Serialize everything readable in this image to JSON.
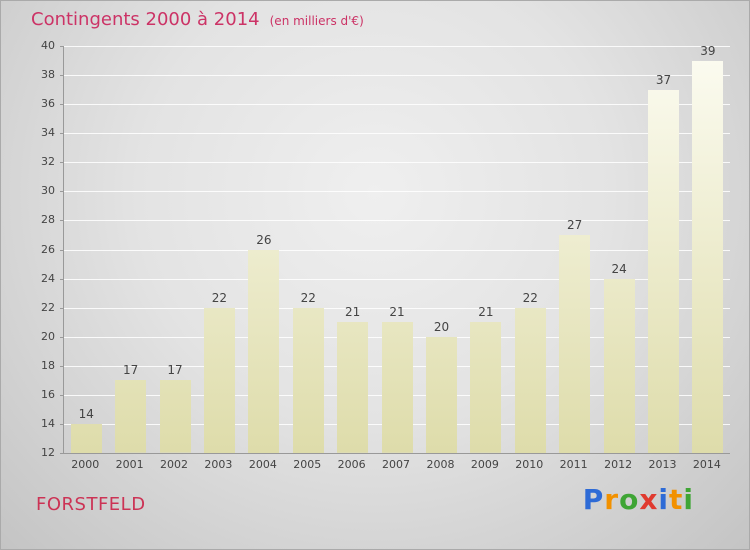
{
  "header": {
    "title": "Contingents 2000 à 2014",
    "subtitle": "(en milliers d'€)"
  },
  "footer": {
    "place": "FORSTFELD"
  },
  "logo": {
    "letters": [
      {
        "ch": "P",
        "color": "#2e6bd6"
      },
      {
        "ch": "r",
        "color": "#f29100"
      },
      {
        "ch": "o",
        "color": "#3fa535"
      },
      {
        "ch": "x",
        "color": "#e03a2f"
      },
      {
        "ch": "i",
        "color": "#2e6bd6"
      },
      {
        "ch": "t",
        "color": "#f29100"
      },
      {
        "ch": "i",
        "color": "#3fa535"
      }
    ]
  },
  "colors": {
    "title": "#cc3366",
    "place": "#cc3355",
    "label": "#444444",
    "axis": "#999999",
    "grid": "#ffffff",
    "bar_top": "#fcfcf2",
    "bar_bottom": "#dedcaa"
  },
  "chart_data": {
    "type": "bar",
    "title": "Contingents 2000 à 2014",
    "subtitle": "(en milliers d'€)",
    "categories": [
      "2000",
      "2001",
      "2002",
      "2003",
      "2004",
      "2005",
      "2006",
      "2007",
      "2008",
      "2009",
      "2010",
      "2011",
      "2012",
      "2013",
      "2014"
    ],
    "values": [
      14,
      17,
      17,
      22,
      26,
      22,
      21,
      21,
      20,
      21,
      22,
      27,
      24,
      37,
      39
    ],
    "xlabel": "",
    "ylabel": "",
    "ylim": [
      12,
      40
    ],
    "ytick_step": 2,
    "grid": true,
    "legend": false
  }
}
